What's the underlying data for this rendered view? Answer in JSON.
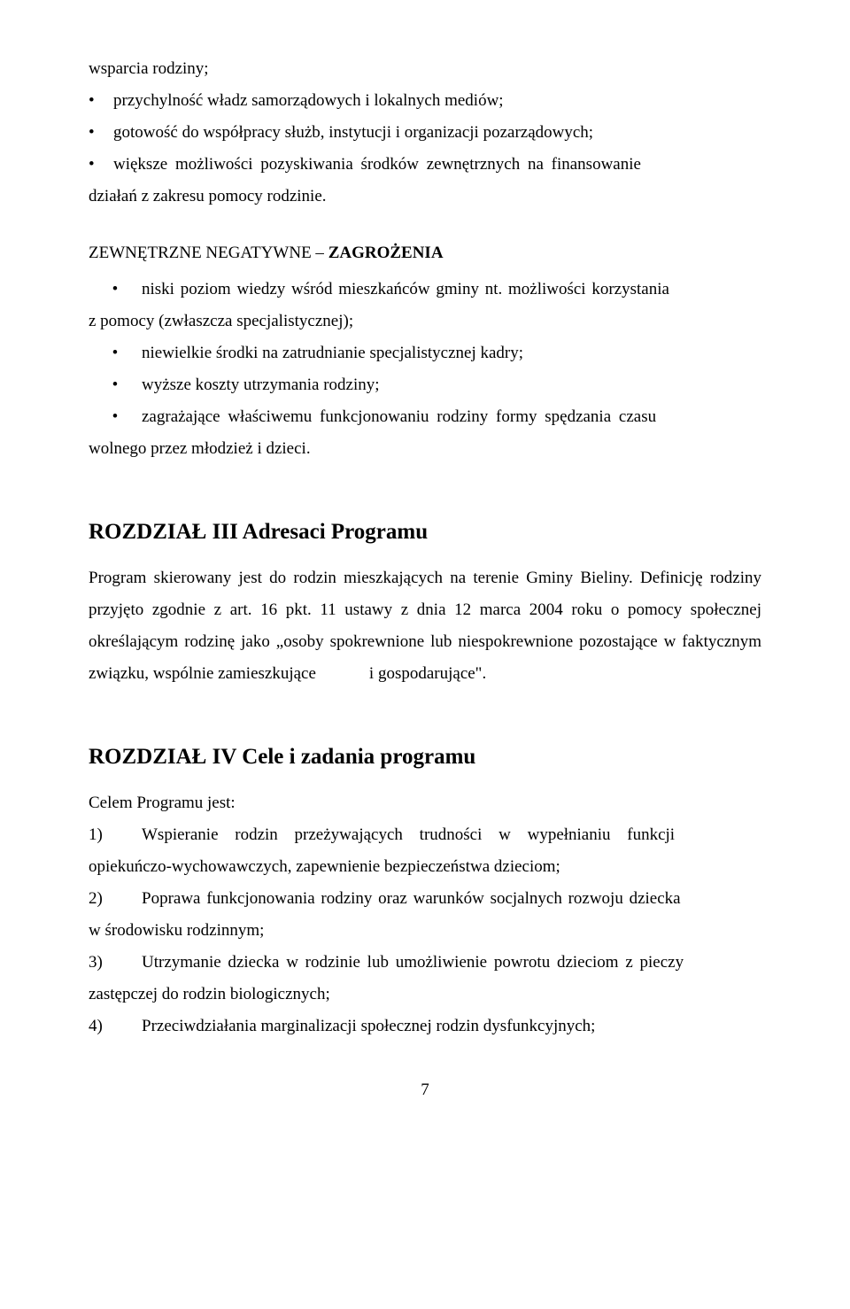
{
  "bullets_top": [
    "wsparcia rodziny;",
    "przychylność władz samorządowych i lokalnych mediów;",
    "gotowość do współpracy służb, instytucji i organizacji pozarządowych;",
    "większe możliwości pozyskiwania środków zewnętrznych na finansowanie"
  ],
  "cont1": "działań z zakresu pomocy rodzinie.",
  "section2_prefix": "ZEWNĘTRZNE NEGATYWNE – ",
  "section2_bold": "ZAGROŻENIA",
  "bullets_mid_1": "niski poziom wiedzy wśród mieszkańców gminy nt. możliwości korzystania",
  "cont2": "z pomocy (zwłaszcza specjalistycznej);",
  "bullets_mid_2": "niewielkie środki na zatrudnianie specjalistycznej kadry;",
  "bullets_mid_3": "wyższe koszty utrzymania rodziny;",
  "bullets_mid_4": "zagrażające właściwemu funkcjonowaniu rodziny formy spędzania czasu",
  "cont3": "wolnego przez młodzież i dzieci.",
  "h2_3": "ROZDZIAŁ III   Adresaci Programu",
  "p3": "Program skierowany jest do rodzin mieszkających na terenie Gminy Bieliny. Definicję rodziny przyjęto zgodnie z art. 16 pkt. 11 ustawy z dnia 12 marca 2004 roku o pomocy społecznej określającym rodzinę jako „osoby spokrewnione lub niespokrewnione pozostające w faktycznym związku, wspólnie zamieszkujące",
  "p3_tail": "i gospodarujące\".",
  "h2_4": "ROZDZIAŁ IV  Cele i zadania programu",
  "p4_intro": "Celem Programu jest:",
  "items4": [
    {
      "n": "1)",
      "t": "Wspieranie rodzin przeżywających trudności w wypełnianiu funkcji",
      "cont": "opiekuńczo-wychowawczych, zapewnienie bezpieczeństwa dzieciom;"
    },
    {
      "n": "2)",
      "t": "Poprawa funkcjonowania rodziny oraz warunków socjalnych rozwoju dziecka",
      "cont": "w środowisku rodzinnym;"
    },
    {
      "n": "3)",
      "t": "Utrzymanie dziecka w rodzinie lub umożliwienie powrotu dzieciom z pieczy",
      "cont": "zastępczej do rodzin biologicznych;"
    },
    {
      "n": "4)",
      "t": "Przeciwdziałania marginalizacji społecznej rodzin dysfunkcyjnych;",
      "cont": ""
    }
  ],
  "page_num": "7"
}
